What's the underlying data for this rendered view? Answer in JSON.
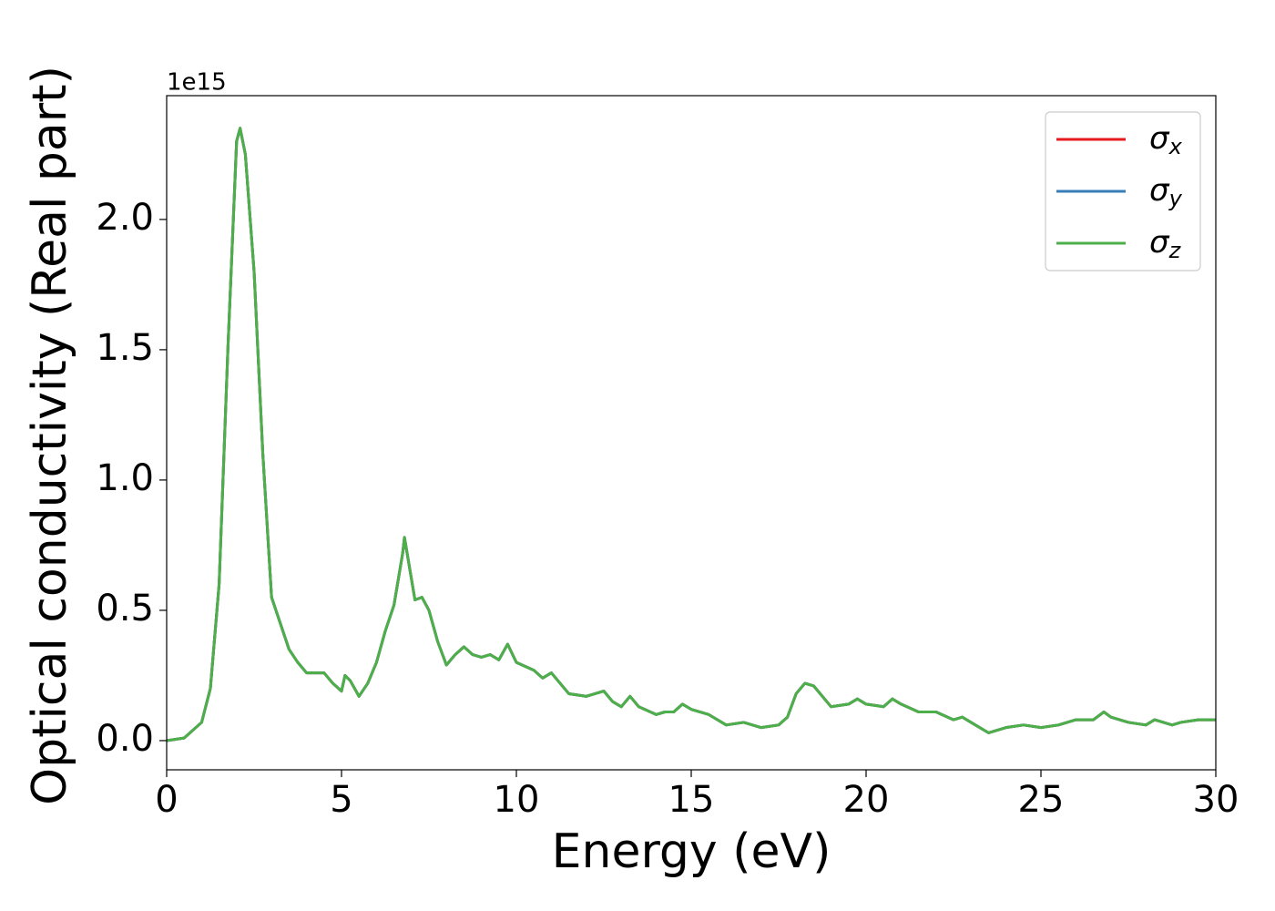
{
  "chart_data": {
    "type": "line",
    "xlabel": "Energy (eV)",
    "ylabel": "Optical conductivity (Real part)",
    "y_offset_label": "1e15",
    "x": [
      0,
      0.5,
      1.0,
      1.25,
      1.5,
      1.75,
      2.0,
      2.1,
      2.25,
      2.5,
      2.75,
      3.0,
      3.25,
      3.5,
      3.75,
      4.0,
      4.5,
      4.75,
      5.0,
      5.1,
      5.25,
      5.5,
      5.75,
      6.0,
      6.25,
      6.5,
      6.75,
      6.8,
      7.0,
      7.1,
      7.3,
      7.5,
      7.75,
      8.0,
      8.25,
      8.5,
      8.75,
      9.0,
      9.25,
      9.5,
      9.75,
      10.0,
      10.5,
      10.75,
      11.0,
      11.5,
      12.0,
      12.5,
      12.75,
      13.0,
      13.25,
      13.5,
      14.0,
      14.25,
      14.5,
      14.75,
      15.0,
      15.5,
      16.0,
      16.5,
      17.0,
      17.5,
      17.75,
      18.0,
      18.25,
      18.5,
      19.0,
      19.5,
      19.75,
      20.0,
      20.5,
      20.75,
      21.0,
      21.5,
      22.0,
      22.5,
      22.75,
      23.0,
      23.5,
      24.0,
      24.5,
      25.0,
      25.5,
      26.0,
      26.5,
      26.8,
      27.0,
      27.5,
      28.0,
      28.25,
      28.75,
      29.0,
      29.5,
      30.0
    ],
    "series": [
      {
        "name": "σx",
        "color": "#e41a1c",
        "values": [
          0.0,
          0.01,
          0.07,
          0.2,
          0.6,
          1.5,
          2.3,
          2.35,
          2.25,
          1.8,
          1.1,
          0.55,
          0.45,
          0.35,
          0.3,
          0.26,
          0.26,
          0.22,
          0.19,
          0.25,
          0.23,
          0.17,
          0.22,
          0.3,
          0.42,
          0.52,
          0.72,
          0.78,
          0.62,
          0.54,
          0.55,
          0.5,
          0.38,
          0.29,
          0.33,
          0.36,
          0.33,
          0.32,
          0.33,
          0.31,
          0.37,
          0.3,
          0.27,
          0.24,
          0.26,
          0.18,
          0.17,
          0.19,
          0.15,
          0.13,
          0.17,
          0.13,
          0.1,
          0.11,
          0.11,
          0.14,
          0.12,
          0.1,
          0.06,
          0.07,
          0.05,
          0.06,
          0.09,
          0.18,
          0.22,
          0.21,
          0.13,
          0.14,
          0.16,
          0.14,
          0.13,
          0.16,
          0.14,
          0.11,
          0.11,
          0.08,
          0.09,
          0.07,
          0.03,
          0.05,
          0.06,
          0.05,
          0.06,
          0.08,
          0.08,
          0.11,
          0.09,
          0.07,
          0.06,
          0.08,
          0.06,
          0.07,
          0.08,
          0.08
        ]
      },
      {
        "name": "σy",
        "color": "#377eb8",
        "values": [
          0.0,
          0.01,
          0.07,
          0.2,
          0.6,
          1.5,
          2.3,
          2.35,
          2.25,
          1.8,
          1.1,
          0.55,
          0.45,
          0.35,
          0.3,
          0.26,
          0.26,
          0.22,
          0.19,
          0.25,
          0.23,
          0.17,
          0.22,
          0.3,
          0.42,
          0.52,
          0.72,
          0.78,
          0.62,
          0.54,
          0.55,
          0.5,
          0.38,
          0.29,
          0.33,
          0.36,
          0.33,
          0.32,
          0.33,
          0.31,
          0.37,
          0.3,
          0.27,
          0.24,
          0.26,
          0.18,
          0.17,
          0.19,
          0.15,
          0.13,
          0.17,
          0.13,
          0.1,
          0.11,
          0.11,
          0.14,
          0.12,
          0.1,
          0.06,
          0.07,
          0.05,
          0.06,
          0.09,
          0.18,
          0.22,
          0.21,
          0.13,
          0.14,
          0.16,
          0.14,
          0.13,
          0.16,
          0.14,
          0.11,
          0.11,
          0.08,
          0.09,
          0.07,
          0.03,
          0.05,
          0.06,
          0.05,
          0.06,
          0.08,
          0.08,
          0.11,
          0.09,
          0.07,
          0.06,
          0.08,
          0.06,
          0.07,
          0.08,
          0.08
        ]
      },
      {
        "name": "σz",
        "color": "#4daf4a",
        "values": [
          0.0,
          0.01,
          0.07,
          0.2,
          0.6,
          1.5,
          2.3,
          2.35,
          2.25,
          1.8,
          1.1,
          0.55,
          0.45,
          0.35,
          0.3,
          0.26,
          0.26,
          0.22,
          0.19,
          0.25,
          0.23,
          0.17,
          0.22,
          0.3,
          0.42,
          0.52,
          0.72,
          0.78,
          0.62,
          0.54,
          0.55,
          0.5,
          0.38,
          0.29,
          0.33,
          0.36,
          0.33,
          0.32,
          0.33,
          0.31,
          0.37,
          0.3,
          0.27,
          0.24,
          0.26,
          0.18,
          0.17,
          0.19,
          0.15,
          0.13,
          0.17,
          0.13,
          0.1,
          0.11,
          0.11,
          0.14,
          0.12,
          0.1,
          0.06,
          0.07,
          0.05,
          0.06,
          0.09,
          0.18,
          0.22,
          0.21,
          0.13,
          0.14,
          0.16,
          0.14,
          0.13,
          0.16,
          0.14,
          0.11,
          0.11,
          0.08,
          0.09,
          0.07,
          0.03,
          0.05,
          0.06,
          0.05,
          0.06,
          0.08,
          0.08,
          0.11,
          0.09,
          0.07,
          0.06,
          0.08,
          0.06,
          0.07,
          0.08,
          0.08
        ]
      }
    ],
    "xlim": [
      0,
      30
    ],
    "xticks": [
      0,
      5,
      10,
      15,
      20,
      25,
      30
    ],
    "ylim": [
      -0.112,
      2.475
    ],
    "yticks": [
      {
        "value": 0,
        "label": "0.0"
      },
      0.5,
      {
        "value": 1,
        "label": "1.0"
      },
      1.5,
      {
        "value": 2,
        "label": "2.0"
      }
    ],
    "grid": false,
    "legend": "upper right"
  }
}
